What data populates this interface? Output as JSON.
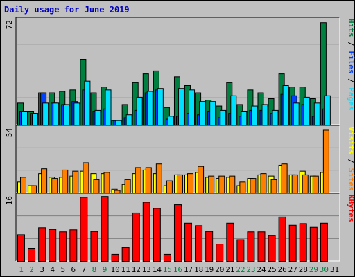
{
  "title": "Daily usage for June 2019",
  "colors": {
    "background": "#c0c0c0",
    "hits": "#008040",
    "files": "#0040ff",
    "pages": "#00e0ff",
    "visits": "#ffff00",
    "sites": "#ff8000",
    "kbytes": "#ff0000",
    "title": "#0000c0",
    "tick_odd": "#000000",
    "tick_weekend": "#008040"
  },
  "chart_data": [
    {
      "type": "bar",
      "categories": [
        "1",
        "2",
        "3",
        "4",
        "5",
        "6",
        "7",
        "8",
        "9",
        "10",
        "11",
        "12",
        "13",
        "14",
        "15",
        "16",
        "17",
        "18",
        "19",
        "20",
        "21",
        "22",
        "23",
        "24",
        "25",
        "26",
        "27",
        "28",
        "29",
        "30",
        "31"
      ],
      "weekend_days": [
        1,
        2,
        8,
        9,
        15,
        16,
        22,
        23,
        29,
        30
      ],
      "ymax_label": "72",
      "ylim": [
        0,
        72
      ],
      "series": [
        {
          "name": "Hits",
          "values": [
            15,
            9,
            22,
            22,
            23,
            24,
            45,
            22,
            26,
            3,
            14,
            29,
            35,
            37,
            12,
            33,
            27,
            22,
            17,
            13,
            29,
            14,
            24,
            22,
            18,
            35,
            26,
            26,
            18,
            70,
            null
          ]
        },
        {
          "name": "Files",
          "values": [
            9,
            8,
            22,
            15,
            14,
            16,
            24,
            9,
            11,
            3,
            5,
            10,
            22,
            24,
            4,
            6,
            8,
            7,
            9,
            5,
            8,
            6,
            10,
            10,
            8,
            21,
            20,
            14,
            6,
            11,
            null
          ]
        },
        {
          "name": "Pages",
          "values": [
            9,
            8,
            15,
            15,
            14,
            15,
            30,
            10,
            24,
            3,
            7,
            19,
            23,
            25,
            6,
            25,
            24,
            16,
            16,
            10,
            20,
            9,
            13,
            14,
            10,
            27,
            15,
            19,
            15,
            20,
            null
          ]
        }
      ],
      "right_label": [
        "Pages",
        "Files",
        "Hits"
      ]
    },
    {
      "type": "bar",
      "categories": [
        "1",
        "2",
        "3",
        "4",
        "5",
        "6",
        "7",
        "8",
        "9",
        "10",
        "11",
        "12",
        "13",
        "14",
        "15",
        "16",
        "17",
        "18",
        "19",
        "20",
        "21",
        "22",
        "23",
        "24",
        "25",
        "26",
        "27",
        "28",
        "29",
        "30",
        "31"
      ],
      "ymax_label": "54",
      "ylim": [
        0,
        54
      ],
      "series": [
        {
          "name": "Visits",
          "values": [
            9,
            6,
            16,
            13,
            13,
            14,
            18,
            16,
            16,
            3,
            7,
            16,
            19,
            16,
            6,
            15,
            15,
            17,
            13,
            12,
            13,
            6,
            12,
            15,
            14,
            23,
            15,
            18,
            14,
            17,
            null
          ]
        },
        {
          "name": "Sites",
          "values": [
            13,
            6,
            20,
            12,
            19,
            18,
            25,
            11,
            17,
            2,
            11,
            21,
            21,
            24,
            10,
            15,
            16,
            22,
            14,
            14,
            14,
            9,
            12,
            16,
            11,
            24,
            15,
            15,
            14,
            52,
            null
          ]
        }
      ],
      "right_label": [
        "Sites",
        "Visits"
      ]
    },
    {
      "type": "bar",
      "categories": [
        "1",
        "2",
        "3",
        "4",
        "5",
        "6",
        "7",
        "8",
        "9",
        "10",
        "11",
        "12",
        "13",
        "14",
        "15",
        "16",
        "17",
        "18",
        "19",
        "20",
        "21",
        "22",
        "23",
        "24",
        "25",
        "26",
        "27",
        "28",
        "29",
        "30",
        "31"
      ],
      "ymax_label": "16",
      "ylim": [
        0,
        16
      ],
      "series": [
        {
          "name": "KBytes",
          "values": [
            6.5,
            3.2,
            8.2,
            7.8,
            7.2,
            7.7,
            15.6,
            7.3,
            15.8,
            1.7,
            3.4,
            11.8,
            14.4,
            12.9,
            1.7,
            13.8,
            9.3,
            8.7,
            7.3,
            4.2,
            9.3,
            5.3,
            7.2,
            7.2,
            6.3,
            10.8,
            8.8,
            9.2,
            8.3,
            9.3,
            null
          ]
        }
      ],
      "right_label": [
        "KBytes"
      ]
    }
  ]
}
